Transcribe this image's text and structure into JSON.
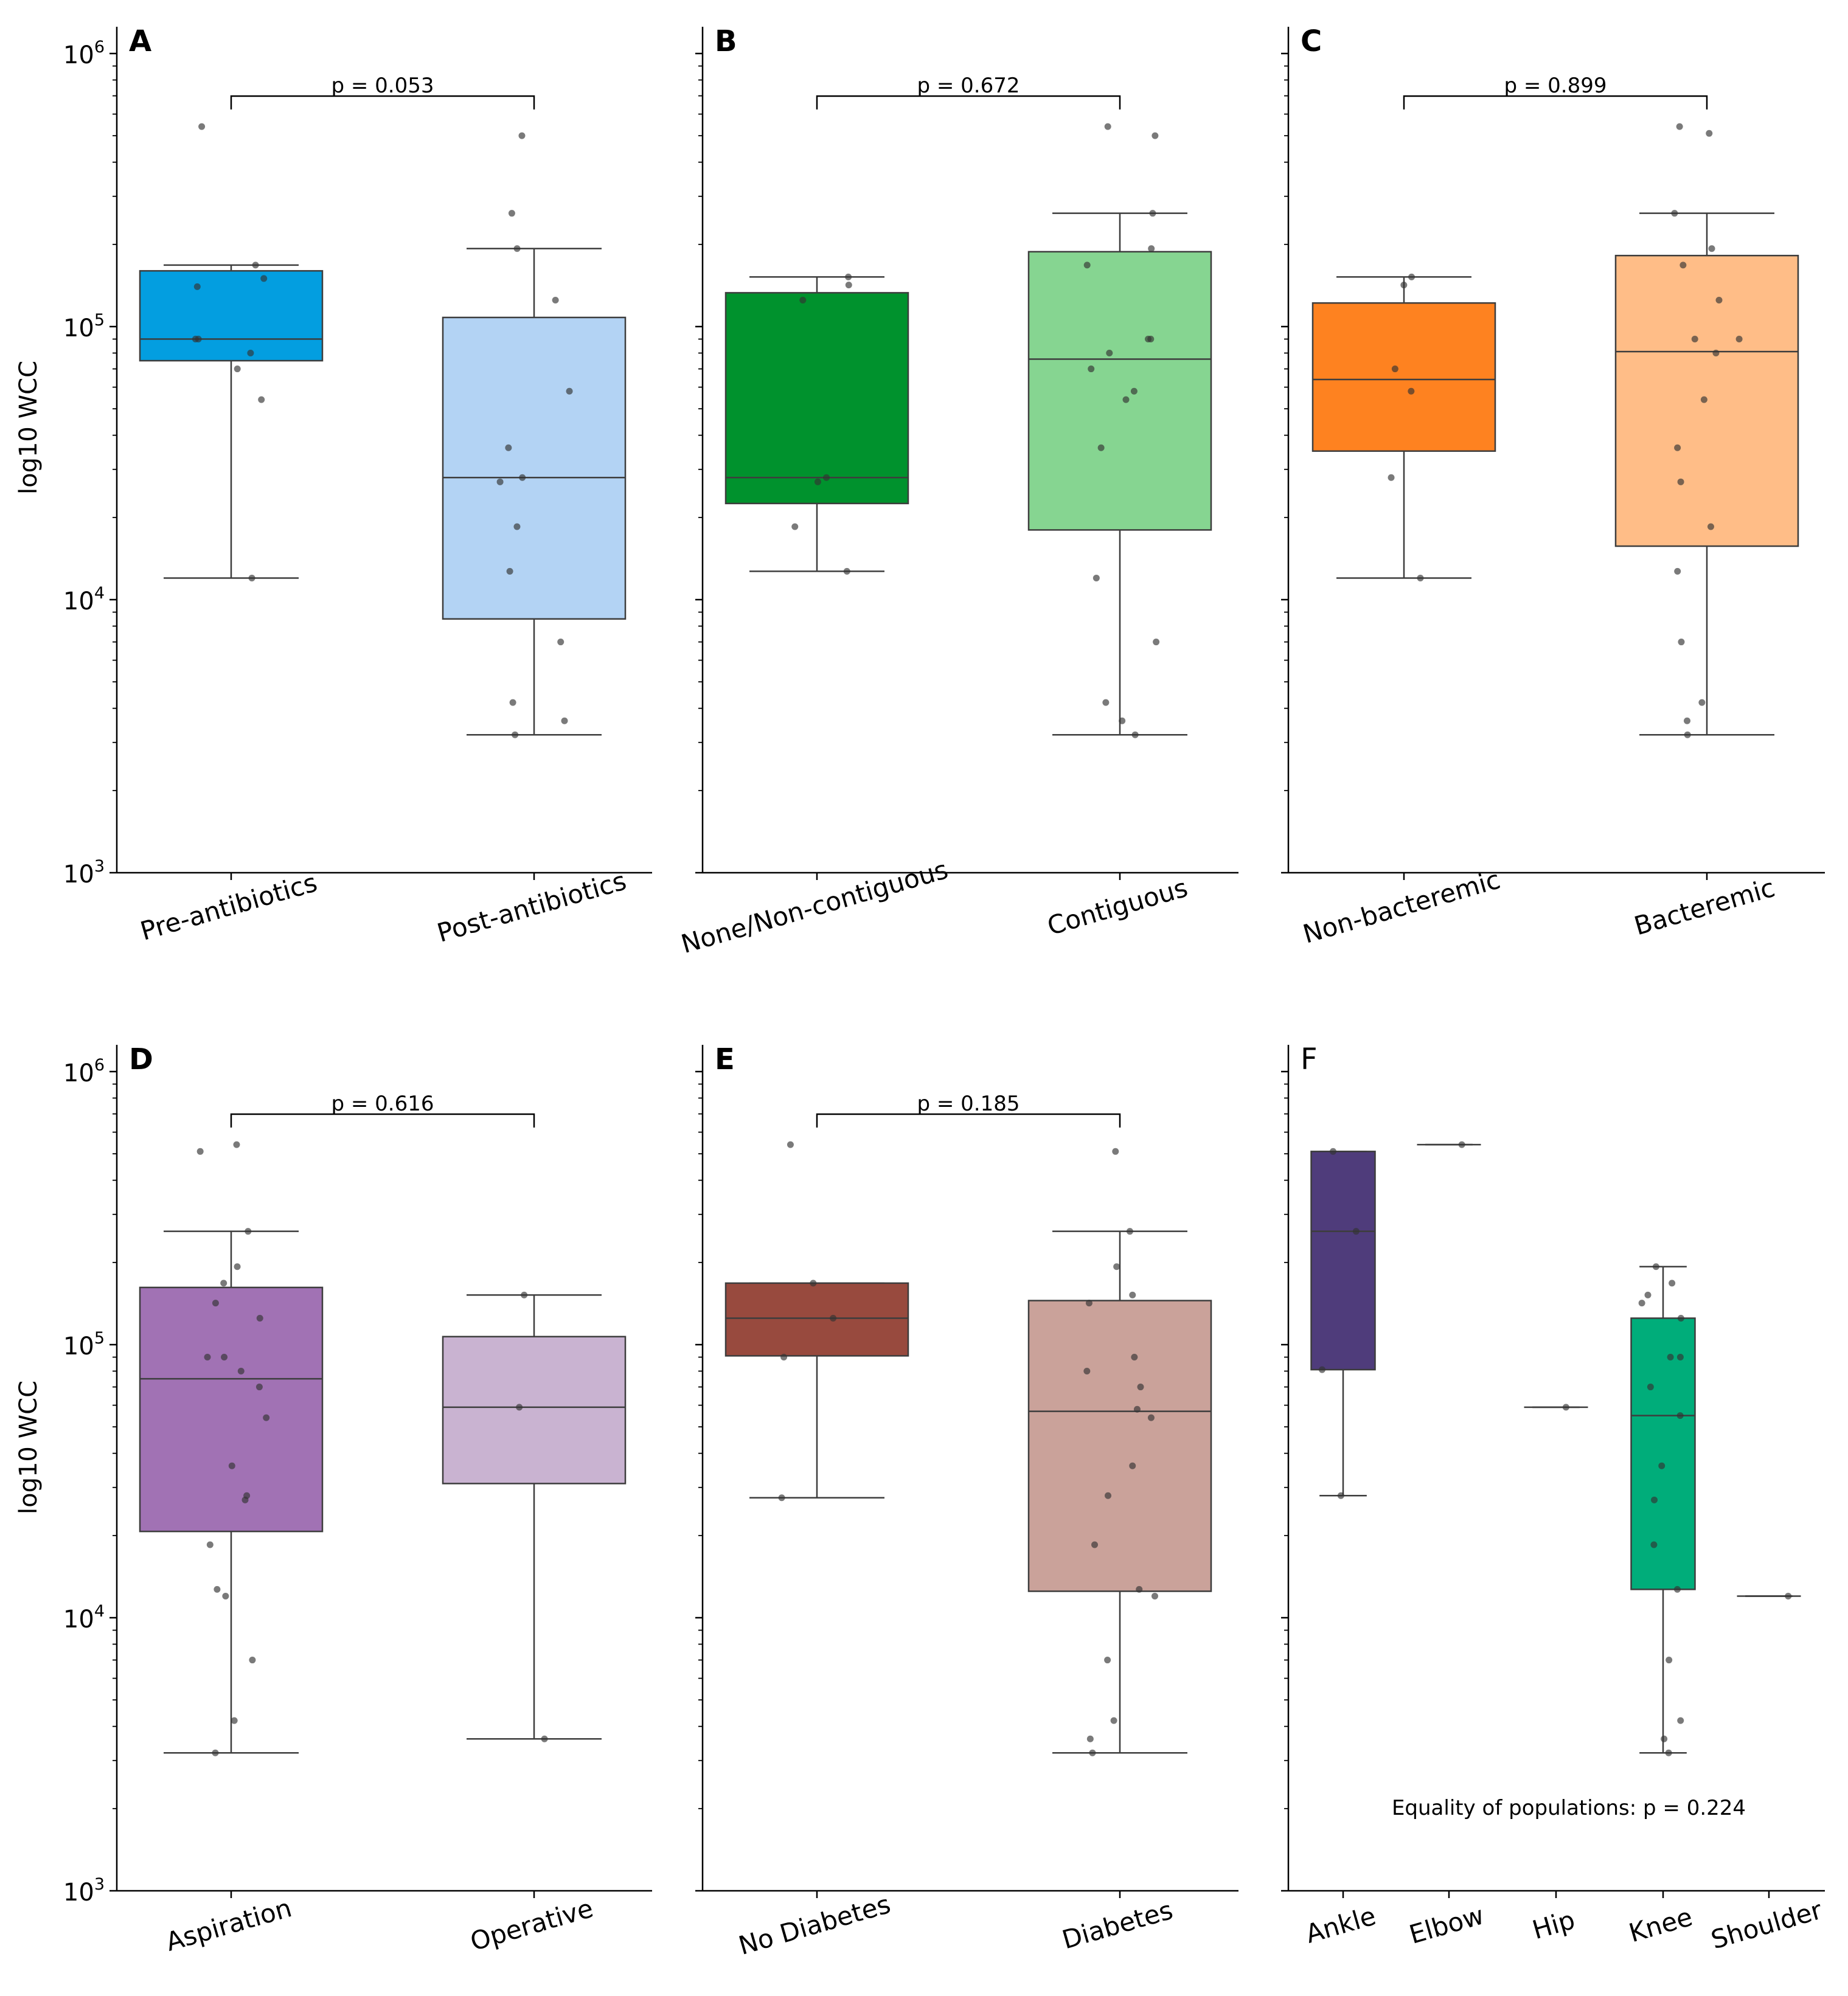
{
  "figure": {
    "y_axis_label": "log10 WCC"
  },
  "chart_data": [
    {
      "panel": "A",
      "type": "box",
      "ylabel": "log10 WCC",
      "scale": "log",
      "ylim": [
        1000,
        1000000
      ],
      "y_ticks": [
        {
          "base": "10",
          "exp": "3"
        },
        {
          "base": "10",
          "exp": "4"
        },
        {
          "base": "10",
          "exp": "5"
        },
        {
          "base": "10",
          "exp": "6"
        }
      ],
      "p_value": "p = 0.053",
      "groups": [
        {
          "name": "Pre-antibiotics",
          "color": "#039ee0",
          "box": {
            "whislo": 12000,
            "q1": 75000,
            "med": 90000,
            "q3": 160000,
            "whishi": 168000
          },
          "points": [
            540000,
            168000,
            150000,
            140000,
            90000,
            90000,
            80000,
            70000,
            54000,
            12000
          ]
        },
        {
          "name": "Post-antibiotics",
          "color": "#b3d3f4",
          "box": {
            "whislo": 3200,
            "q1": 8500,
            "med": 28000,
            "q3": 108000,
            "whishi": 193000
          },
          "points": [
            500000,
            260000,
            193000,
            125000,
            58000,
            36000,
            28000,
            27000,
            18500,
            12700,
            7000,
            4200,
            3600,
            3200
          ]
        }
      ]
    },
    {
      "panel": "B",
      "type": "box",
      "ylabel": "",
      "scale": "log",
      "ylim": [
        1000,
        1000000
      ],
      "p_value": "p = 0.672",
      "groups": [
        {
          "name": "None/Non-contiguous",
          "color": "#00922d",
          "box": {
            "whislo": 12700,
            "q1": 22500,
            "med": 28000,
            "q3": 133000,
            "whishi": 152000
          },
          "points": [
            152000,
            142000,
            125000,
            28000,
            27000,
            18500,
            12700
          ]
        },
        {
          "name": "Contiguous",
          "color": "#86d591",
          "box": {
            "whislo": 3200,
            "q1": 18000,
            "med": 76000,
            "q3": 188000,
            "whishi": 260000
          },
          "points": [
            540000,
            500000,
            260000,
            193000,
            168000,
            90000,
            90000,
            80000,
            70000,
            58000,
            54000,
            36000,
            12000,
            7000,
            4200,
            3600,
            3200
          ]
        }
      ]
    },
    {
      "panel": "C",
      "type": "box",
      "ylabel": "",
      "scale": "log",
      "ylim": [
        1000,
        1000000
      ],
      "p_value": "p = 0.899",
      "groups": [
        {
          "name": "Non-bacteremic",
          "color": "#fe8220",
          "box": {
            "whislo": 12000,
            "q1": 35000,
            "med": 64000,
            "q3": 122000,
            "whishi": 152000
          },
          "points": [
            152000,
            142000,
            70000,
            58000,
            28000,
            12000
          ]
        },
        {
          "name": "Bacteremic",
          "color": "#ffbd87",
          "box": {
            "whislo": 3200,
            "q1": 15700,
            "med": 81000,
            "q3": 182000,
            "whishi": 260000
          },
          "points": [
            540000,
            510000,
            260000,
            193000,
            168000,
            125000,
            90000,
            90000,
            80000,
            54000,
            36000,
            27000,
            18500,
            12700,
            7000,
            4200,
            3600,
            3200
          ]
        }
      ]
    },
    {
      "panel": "D",
      "type": "box",
      "ylabel": "log10 WCC",
      "scale": "log",
      "ylim": [
        1000,
        1000000
      ],
      "y_ticks": [
        {
          "base": "10",
          "exp": "3"
        },
        {
          "base": "10",
          "exp": "4"
        },
        {
          "base": "10",
          "exp": "5"
        },
        {
          "base": "10",
          "exp": "6"
        }
      ],
      "p_value": "p = 0.616",
      "groups": [
        {
          "name": "Aspiration",
          "color": "#a172b4",
          "box": {
            "whislo": 3200,
            "q1": 20700,
            "med": 75000,
            "q3": 162000,
            "whishi": 260000
          },
          "points": [
            540000,
            510000,
            260000,
            193000,
            168000,
            142000,
            125000,
            90000,
            90000,
            80000,
            70000,
            54000,
            36000,
            28000,
            27000,
            18500,
            12700,
            12000,
            7000,
            4200,
            3200
          ]
        },
        {
          "name": "Operative",
          "color": "#c9b3d1",
          "box": {
            "whislo": 3600,
            "q1": 31000,
            "med": 59000,
            "q3": 107000,
            "whishi": 152000
          },
          "points": [
            152000,
            59000,
            3600
          ]
        }
      ]
    },
    {
      "panel": "E",
      "type": "box",
      "ylabel": "",
      "scale": "log",
      "ylim": [
        1000,
        1000000
      ],
      "p_value": "p = 0.185",
      "groups": [
        {
          "name": "No Diabetes",
          "color": "#984a3e",
          "box": {
            "whislo": 27500,
            "q1": 91000,
            "med": 125000,
            "q3": 168000,
            "whishi": 168000
          },
          "points": [
            540000,
            168000,
            125000,
            90000,
            27500
          ]
        },
        {
          "name": "Diabetes",
          "color": "#caa29a",
          "box": {
            "whislo": 3200,
            "q1": 12500,
            "med": 57000,
            "q3": 145000,
            "whishi": 260000
          },
          "points": [
            510000,
            260000,
            193000,
            152000,
            142000,
            90000,
            80000,
            70000,
            58000,
            54000,
            36000,
            28000,
            18500,
            12700,
            12000,
            7000,
            4200,
            3600,
            3200
          ]
        }
      ]
    },
    {
      "panel": "F",
      "type": "box",
      "ylabel": "",
      "scale": "log",
      "ylim": [
        1000,
        1000000
      ],
      "p_value": "",
      "annotation": "Equality of populations: p = 0.224",
      "groups": [
        {
          "name": "Ankle",
          "color": "#4f3c7b",
          "box": {
            "whislo": 28000,
            "q1": 81000,
            "med": 260000,
            "q3": 510000,
            "whishi": 510000
          },
          "points": [
            510000,
            260000,
            81000,
            28000
          ]
        },
        {
          "name": "Elbow",
          "color": "#4f3c7b",
          "box": {
            "whislo": 540000,
            "q1": 540000,
            "med": 540000,
            "q3": 540000,
            "whishi": 540000
          },
          "points": [
            540000
          ]
        },
        {
          "name": "Hip",
          "color": "#4f3c7b",
          "box": {
            "whislo": 59000,
            "q1": 59000,
            "med": 59000,
            "q3": 59000,
            "whishi": 59000
          },
          "points": [
            59000
          ]
        },
        {
          "name": "Knee",
          "color": "#00ad7a",
          "box": {
            "whislo": 3200,
            "q1": 12700,
            "med": 55000,
            "q3": 125000,
            "whishi": 193000
          },
          "points": [
            193000,
            168000,
            152000,
            142000,
            125000,
            90000,
            90000,
            70000,
            55000,
            36000,
            27000,
            18500,
            12700,
            7000,
            4200,
            3600,
            3200
          ]
        },
        {
          "name": "Shoulder",
          "color": "#4f3c7b",
          "box": {
            "whislo": 12000,
            "q1": 12000,
            "med": 12000,
            "q3": 12000,
            "whishi": 12000
          },
          "points": [
            12000
          ]
        }
      ]
    }
  ]
}
